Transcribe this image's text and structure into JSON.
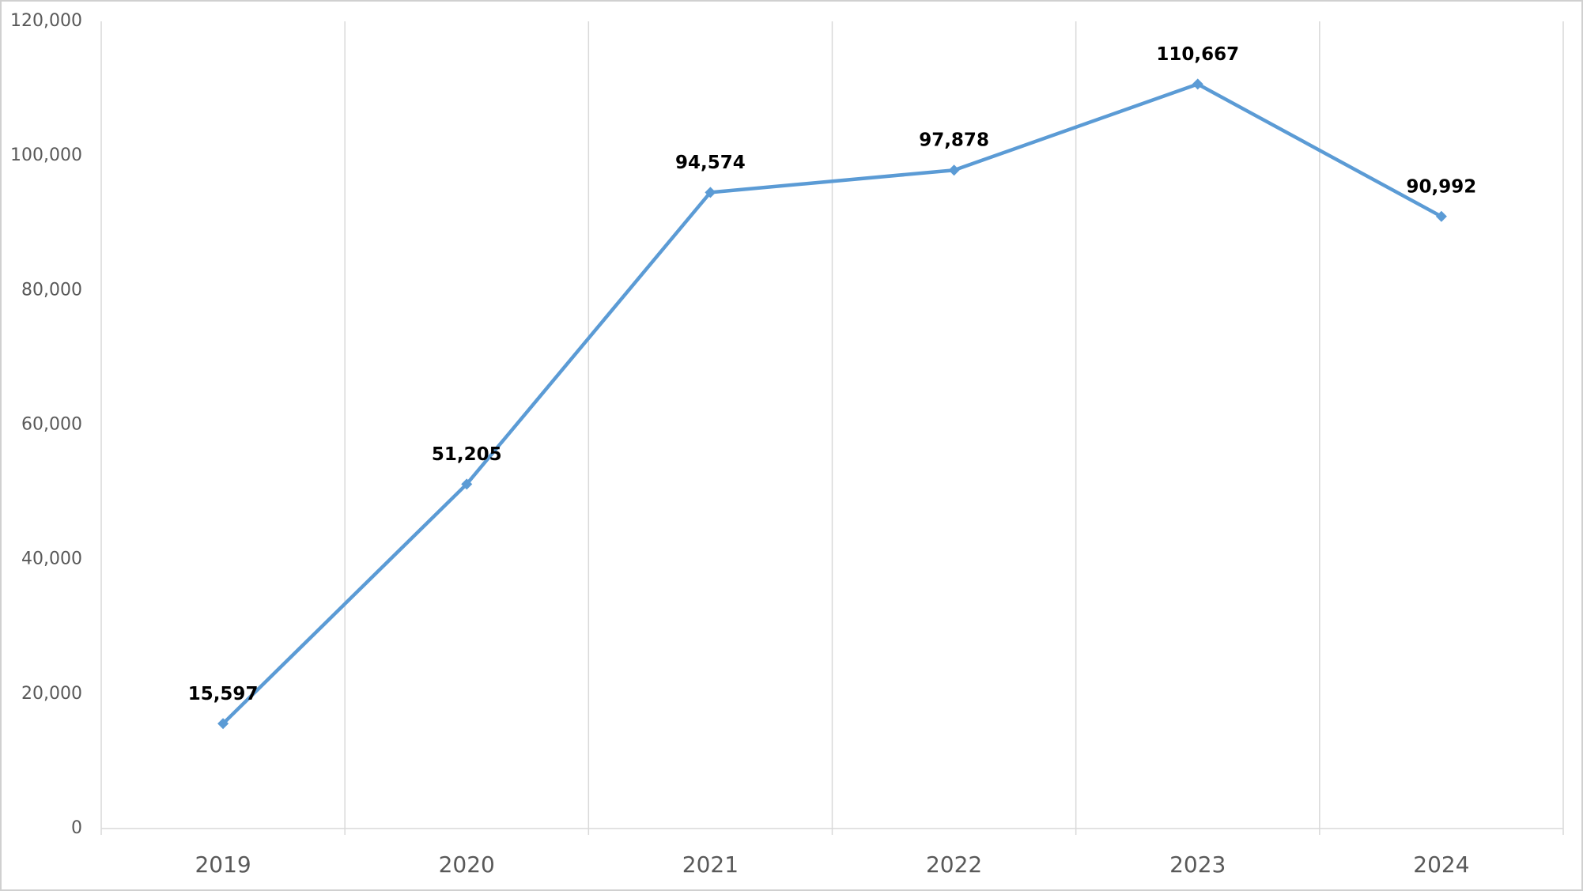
{
  "chart_data": {
    "type": "line",
    "categories": [
      "2019",
      "2020",
      "2021",
      "2022",
      "2023",
      "2024"
    ],
    "values": [
      15597,
      51205,
      94574,
      97878,
      110667,
      90992
    ],
    "value_labels": [
      "15,597",
      "51,205",
      "94,574",
      "97,878",
      "110,667",
      "90,992"
    ],
    "color": "#5b9bd5",
    "ylim": [
      0,
      120000
    ],
    "yticks": [
      0,
      {
        "value": 20000,
        "label": "20,000"
      },
      {
        "value": 40000,
        "label": "40,000"
      },
      {
        "value": 60000,
        "label": "60,000"
      },
      {
        "value": 80000,
        "label": "80,000"
      },
      {
        "value": 100000,
        "label": "100,000"
      },
      {
        "value": 120000,
        "label": "120,000"
      }
    ],
    "grid": true
  }
}
